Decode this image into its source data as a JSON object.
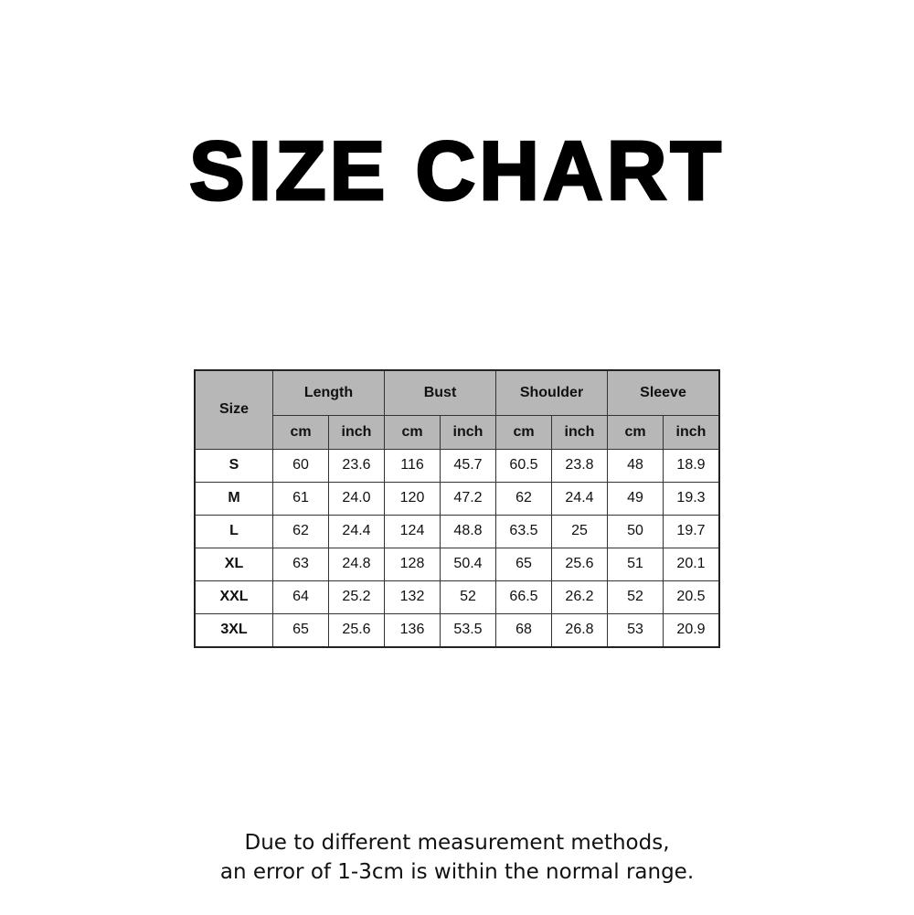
{
  "title": "SIZE CHART",
  "table": {
    "size_header": "Size",
    "groups": [
      "Length",
      "Bust",
      "Shoulder",
      "Sleeve"
    ],
    "units": [
      "cm",
      "inch"
    ],
    "rows": [
      {
        "size": "S",
        "values": [
          "60",
          "23.6",
          "116",
          "45.7",
          "60.5",
          "23.8",
          "48",
          "18.9"
        ]
      },
      {
        "size": "M",
        "values": [
          "61",
          "24.0",
          "120",
          "47.2",
          "62",
          "24.4",
          "49",
          "19.3"
        ]
      },
      {
        "size": "L",
        "values": [
          "62",
          "24.4",
          "124",
          "48.8",
          "63.5",
          "25",
          "50",
          "19.7"
        ]
      },
      {
        "size": "XL",
        "values": [
          "63",
          "24.8",
          "128",
          "50.4",
          "65",
          "25.6",
          "51",
          "20.1"
        ]
      },
      {
        "size": "XXL",
        "values": [
          "64",
          "25.2",
          "132",
          "52",
          "66.5",
          "26.2",
          "52",
          "20.5"
        ]
      },
      {
        "size": "3XL",
        "values": [
          "65",
          "25.6",
          "136",
          "53.5",
          "68",
          "26.8",
          "53",
          "20.9"
        ]
      }
    ]
  },
  "note": {
    "line1": "Due to different measurement methods,",
    "line2": "an error of 1-3cm is within the normal range."
  }
}
